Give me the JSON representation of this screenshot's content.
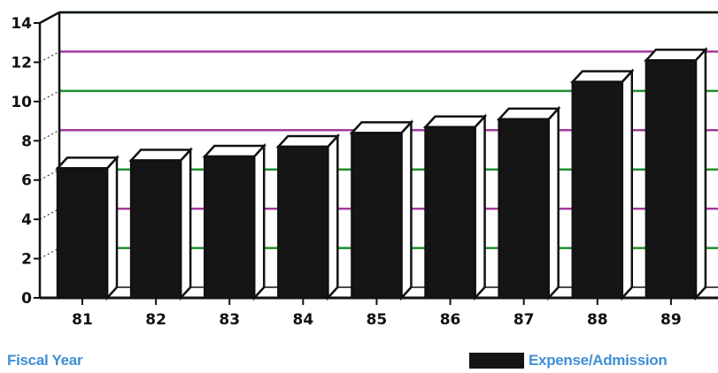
{
  "chart_data": {
    "type": "bar",
    "categories": [
      "81",
      "82",
      "83",
      "84",
      "85",
      "86",
      "87",
      "88",
      "89"
    ],
    "series": [
      {
        "name": "Expense/Admission",
        "values": [
          6.6,
          7.0,
          7.2,
          7.7,
          8.4,
          8.7,
          9.1,
          11.0,
          12.1
        ]
      }
    ],
    "yticks": [
      "0",
      "2",
      "4",
      "6",
      "8",
      "10",
      "12",
      "14"
    ],
    "ylim": [
      0,
      14
    ],
    "xlabel": "Fiscal Year",
    "ylabel": "",
    "title": "",
    "legend": "bottom-right",
    "grid": true,
    "colors": {
      "bar": "#151515",
      "bar_side": "#ffffff",
      "grid_purple": "#a23b9e",
      "grid_green": "#1e8f2e",
      "label_blue": "#3f8fd6"
    }
  }
}
